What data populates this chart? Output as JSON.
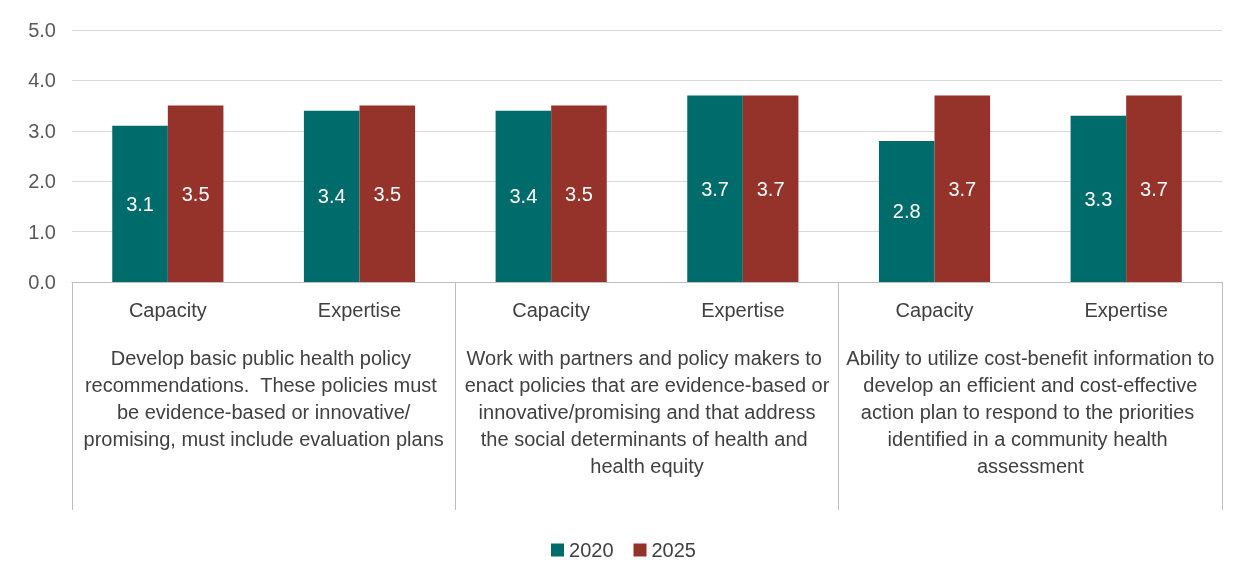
{
  "chart_data": {
    "type": "bar",
    "categories": [
      "Capacity",
      "Expertise",
      "Capacity",
      "Expertise",
      "Capacity",
      "Expertise"
    ],
    "annotations": [
      "Develop basic public health policy recommendations.  These policies must be evidence-based or innovative/promising, must include evaluation plans",
      "Work with partners and policy makers to enact policies that are evidence-based or innovative/promising and that address the social determinants of health and health equity",
      "Ability to utilize cost-benefit information to develop an efficient and cost-effective action plan to respond to the priorities identified in a community health assessment"
    ],
    "series": [
      {
        "name": "2020",
        "color": "#006b6b",
        "values": [
          3.1,
          3.4,
          3.4,
          3.7,
          2.8,
          3.3
        ]
      },
      {
        "name": "2025",
        "color": "#953229",
        "values": [
          3.5,
          3.5,
          3.5,
          3.7,
          3.7,
          3.7
        ]
      }
    ],
    "ylim": [
      0,
      5
    ],
    "yticks": [
      {
        "value": 0,
        "label": "0.0"
      },
      {
        "value": 1,
        "label": "1.0"
      },
      {
        "value": 2,
        "label": "2.0"
      },
      {
        "value": 3,
        "label": "3.0"
      },
      {
        "value": 4,
        "label": "4.0"
      },
      {
        "value": 5,
        "label": "5.0"
      }
    ],
    "grid": "y",
    "legend": "bottom",
    "data_labels": true
  }
}
